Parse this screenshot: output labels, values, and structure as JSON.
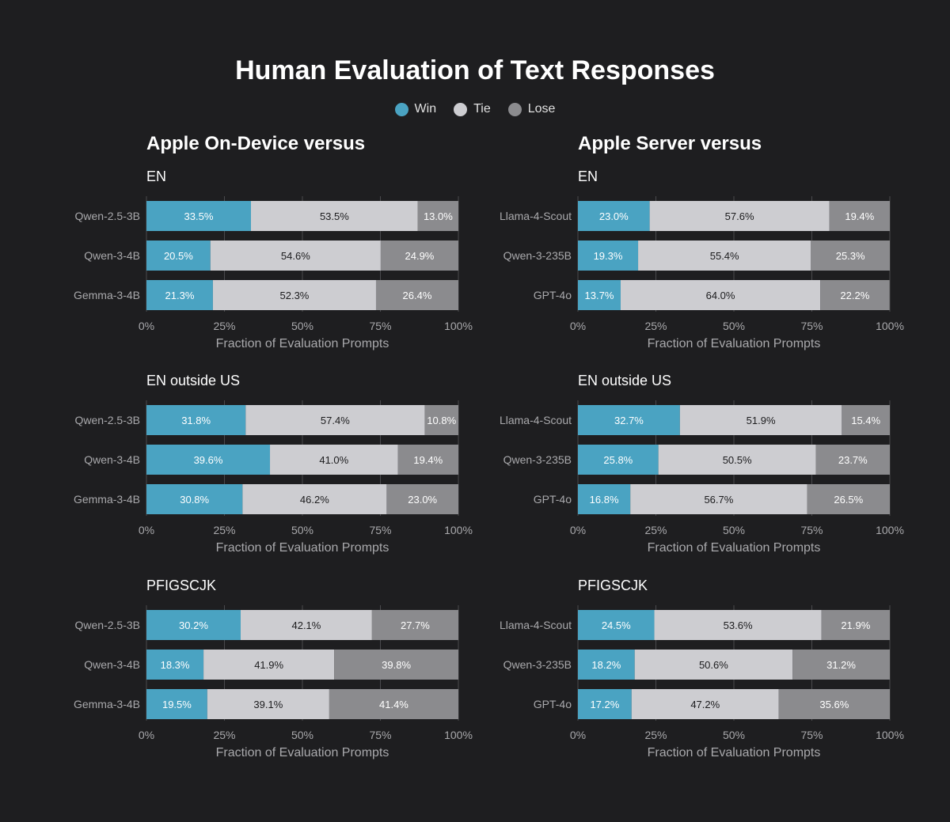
{
  "title": "Human Evaluation of Text Responses",
  "legend": [
    {
      "label": "Win",
      "color": "#4aa3c2"
    },
    {
      "label": "Tie",
      "color": "#cdcdd1"
    },
    {
      "label": "Lose",
      "color": "#8b8b8e"
    }
  ],
  "columns": [
    {
      "header": "Apple On-Device versus"
    },
    {
      "header": "Apple Server versus"
    }
  ],
  "colors": {
    "win": "#4aa3c2",
    "tie": "#cdcdd1",
    "lose": "#8b8b8e",
    "background": "#1e1e20"
  },
  "chart_data": [
    {
      "type": "bar",
      "orientation": "horizontal",
      "stacked": true,
      "title": "EN",
      "column": 0,
      "categories": [
        "Qwen-2.5-3B",
        "Qwen-3-4B",
        "Gemma-3-4B"
      ],
      "series": [
        {
          "name": "Win",
          "values": [
            33.5,
            20.5,
            21.3
          ]
        },
        {
          "name": "Tie",
          "values": [
            53.5,
            54.6,
            52.3
          ]
        },
        {
          "name": "Lose",
          "values": [
            13.0,
            24.9,
            26.4
          ]
        }
      ],
      "xlabel": "Fraction of Evaluation Prompts",
      "xticks": [
        "0%",
        "25%",
        "50%",
        "75%",
        "100%"
      ],
      "xlim": [
        0,
        100
      ]
    },
    {
      "type": "bar",
      "orientation": "horizontal",
      "stacked": true,
      "title": "EN",
      "column": 1,
      "categories": [
        "Llama-4-Scout",
        "Qwen-3-235B",
        "GPT-4o"
      ],
      "series": [
        {
          "name": "Win",
          "values": [
            23.0,
            19.3,
            13.7
          ]
        },
        {
          "name": "Tie",
          "values": [
            57.6,
            55.4,
            64.0
          ]
        },
        {
          "name": "Lose",
          "values": [
            19.4,
            25.3,
            22.2
          ]
        }
      ],
      "xlabel": "Fraction of Evaluation Prompts",
      "xticks": [
        "0%",
        "25%",
        "50%",
        "75%",
        "100%"
      ],
      "xlim": [
        0,
        100
      ]
    },
    {
      "type": "bar",
      "orientation": "horizontal",
      "stacked": true,
      "title": "EN outside US",
      "column": 0,
      "categories": [
        "Qwen-2.5-3B",
        "Qwen-3-4B",
        "Gemma-3-4B"
      ],
      "series": [
        {
          "name": "Win",
          "values": [
            31.8,
            39.6,
            30.8
          ]
        },
        {
          "name": "Tie",
          "values": [
            57.4,
            41.0,
            46.2
          ]
        },
        {
          "name": "Lose",
          "values": [
            10.8,
            19.4,
            23.0
          ]
        }
      ],
      "xlabel": "Fraction of Evaluation Prompts",
      "xticks": [
        "0%",
        "25%",
        "50%",
        "75%",
        "100%"
      ],
      "xlim": [
        0,
        100
      ]
    },
    {
      "type": "bar",
      "orientation": "horizontal",
      "stacked": true,
      "title": "EN outside US",
      "column": 1,
      "categories": [
        "Llama-4-Scout",
        "Qwen-3-235B",
        "GPT-4o"
      ],
      "series": [
        {
          "name": "Win",
          "values": [
            32.7,
            25.8,
            16.8
          ]
        },
        {
          "name": "Tie",
          "values": [
            51.9,
            50.5,
            56.7
          ]
        },
        {
          "name": "Lose",
          "values": [
            15.4,
            23.7,
            26.5
          ]
        }
      ],
      "xlabel": "Fraction of Evaluation Prompts",
      "xticks": [
        "0%",
        "25%",
        "50%",
        "75%",
        "100%"
      ],
      "xlim": [
        0,
        100
      ]
    },
    {
      "type": "bar",
      "orientation": "horizontal",
      "stacked": true,
      "title": "PFIGSCJK",
      "column": 0,
      "categories": [
        "Qwen-2.5-3B",
        "Qwen-3-4B",
        "Gemma-3-4B"
      ],
      "series": [
        {
          "name": "Win",
          "values": [
            30.2,
            18.3,
            19.5
          ]
        },
        {
          "name": "Tie",
          "values": [
            42.1,
            41.9,
            39.1
          ]
        },
        {
          "name": "Lose",
          "values": [
            27.7,
            39.8,
            41.4
          ]
        }
      ],
      "xlabel": "Fraction of Evaluation Prompts",
      "xticks": [
        "0%",
        "25%",
        "50%",
        "75%",
        "100%"
      ],
      "xlim": [
        0,
        100
      ]
    },
    {
      "type": "bar",
      "orientation": "horizontal",
      "stacked": true,
      "title": "PFIGSCJK",
      "column": 1,
      "categories": [
        "Llama-4-Scout",
        "Qwen-3-235B",
        "GPT-4o"
      ],
      "series": [
        {
          "name": "Win",
          "values": [
            24.5,
            18.2,
            17.2
          ]
        },
        {
          "name": "Tie",
          "values": [
            53.6,
            50.6,
            47.2
          ]
        },
        {
          "name": "Lose",
          "values": [
            21.9,
            31.2,
            35.6
          ]
        }
      ],
      "xlabel": "Fraction of Evaluation Prompts",
      "xticks": [
        "0%",
        "25%",
        "50%",
        "75%",
        "100%"
      ],
      "xlim": [
        0,
        100
      ]
    }
  ]
}
